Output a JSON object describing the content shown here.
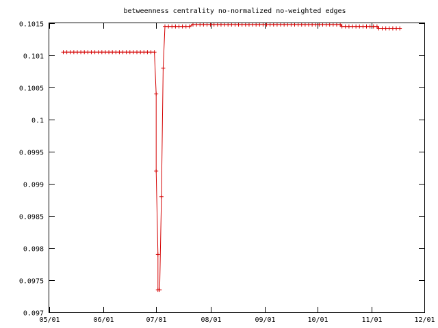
{
  "chart_data": {
    "type": "line",
    "title": "betweenness centrality no-normalized no-weighted edges",
    "xlabel": "",
    "ylabel": "",
    "xlim": [
      "2001-05-01",
      "2001-12-01"
    ],
    "ylim": [
      0.097,
      0.1015
    ],
    "grid": false,
    "legend": "none",
    "x_ticks": [
      "05/01",
      "06/01",
      "07/01",
      "08/01",
      "09/01",
      "10/01",
      "11/01",
      "12/01"
    ],
    "y_ticks": [
      "0.097",
      "0.0975",
      "0.098",
      "0.0985",
      "0.099",
      "0.0995",
      "0.1",
      "0.1005",
      "0.101",
      "0.1015"
    ],
    "series": [
      {
        "color": "#d40000",
        "marker": "plus",
        "points": [
          [
            "2001-05-09",
            0.10105
          ],
          [
            "2001-05-11",
            0.10105
          ],
          [
            "2001-05-13",
            0.10105
          ],
          [
            "2001-05-15",
            0.10105
          ],
          [
            "2001-05-17",
            0.10105
          ],
          [
            "2001-05-19",
            0.10105
          ],
          [
            "2001-05-21",
            0.10105
          ],
          [
            "2001-05-23",
            0.10105
          ],
          [
            "2001-05-25",
            0.10105
          ],
          [
            "2001-05-27",
            0.10105
          ],
          [
            "2001-05-29",
            0.10105
          ],
          [
            "2001-05-31",
            0.10105
          ],
          [
            "2001-06-02",
            0.10105
          ],
          [
            "2001-06-04",
            0.10105
          ],
          [
            "2001-06-06",
            0.10105
          ],
          [
            "2001-06-08",
            0.10105
          ],
          [
            "2001-06-10",
            0.10105
          ],
          [
            "2001-06-12",
            0.10105
          ],
          [
            "2001-06-14",
            0.10105
          ],
          [
            "2001-06-16",
            0.10105
          ],
          [
            "2001-06-18",
            0.10105
          ],
          [
            "2001-06-20",
            0.10105
          ],
          [
            "2001-06-22",
            0.10105
          ],
          [
            "2001-06-24",
            0.10105
          ],
          [
            "2001-06-26",
            0.10105
          ],
          [
            "2001-06-28",
            0.10105
          ],
          [
            "2001-06-30",
            0.10105
          ],
          [
            "2001-07-01",
            0.1004
          ],
          [
            "2001-07-01",
            0.0992
          ],
          [
            "2001-07-02",
            0.0979
          ],
          [
            "2001-07-02",
            0.09735
          ],
          [
            "2001-07-03",
            0.09735
          ],
          [
            "2001-07-04",
            0.0988
          ],
          [
            "2001-07-05",
            0.1008
          ],
          [
            "2001-07-06",
            0.10145
          ],
          [
            "2001-07-08",
            0.10145
          ],
          [
            "2001-07-10",
            0.10145
          ],
          [
            "2001-07-12",
            0.10145
          ],
          [
            "2001-07-14",
            0.10145
          ],
          [
            "2001-07-16",
            0.10145
          ],
          [
            "2001-07-18",
            0.10145
          ],
          [
            "2001-07-20",
            0.10145
          ],
          [
            "2001-07-22",
            0.10148
          ],
          [
            "2001-07-24",
            0.10148
          ],
          [
            "2001-07-26",
            0.10148
          ],
          [
            "2001-07-28",
            0.10148
          ],
          [
            "2001-07-30",
            0.10148
          ],
          [
            "2001-08-01",
            0.10148
          ],
          [
            "2001-08-03",
            0.10148
          ],
          [
            "2001-08-05",
            0.10148
          ],
          [
            "2001-08-07",
            0.10148
          ],
          [
            "2001-08-09",
            0.10148
          ],
          [
            "2001-08-11",
            0.10148
          ],
          [
            "2001-08-13",
            0.10148
          ],
          [
            "2001-08-15",
            0.10148
          ],
          [
            "2001-08-17",
            0.10148
          ],
          [
            "2001-08-19",
            0.10148
          ],
          [
            "2001-08-21",
            0.10148
          ],
          [
            "2001-08-23",
            0.10148
          ],
          [
            "2001-08-25",
            0.10148
          ],
          [
            "2001-08-27",
            0.10148
          ],
          [
            "2001-08-29",
            0.10148
          ],
          [
            "2001-08-31",
            0.10148
          ],
          [
            "2001-09-02",
            0.10148
          ],
          [
            "2001-09-04",
            0.10148
          ],
          [
            "2001-09-06",
            0.10148
          ],
          [
            "2001-09-08",
            0.10148
          ],
          [
            "2001-09-10",
            0.10148
          ],
          [
            "2001-09-12",
            0.10148
          ],
          [
            "2001-09-14",
            0.10148
          ],
          [
            "2001-09-16",
            0.10148
          ],
          [
            "2001-09-18",
            0.10148
          ],
          [
            "2001-09-20",
            0.10148
          ],
          [
            "2001-09-22",
            0.10148
          ],
          [
            "2001-09-24",
            0.10148
          ],
          [
            "2001-09-26",
            0.10148
          ],
          [
            "2001-09-28",
            0.10148
          ],
          [
            "2001-09-30",
            0.10148
          ],
          [
            "2001-10-02",
            0.10148
          ],
          [
            "2001-10-04",
            0.10148
          ],
          [
            "2001-10-06",
            0.10148
          ],
          [
            "2001-10-08",
            0.10148
          ],
          [
            "2001-10-10",
            0.10148
          ],
          [
            "2001-10-12",
            0.10148
          ],
          [
            "2001-10-14",
            0.10148
          ],
          [
            "2001-10-15",
            0.10145
          ],
          [
            "2001-10-17",
            0.10145
          ],
          [
            "2001-10-19",
            0.10145
          ],
          [
            "2001-10-21",
            0.10145
          ],
          [
            "2001-10-23",
            0.10145
          ],
          [
            "2001-10-25",
            0.10145
          ],
          [
            "2001-10-27",
            0.10145
          ],
          [
            "2001-10-29",
            0.10145
          ],
          [
            "2001-10-31",
            0.10145
          ],
          [
            "2001-11-02",
            0.10145
          ],
          [
            "2001-11-04",
            0.10145
          ],
          [
            "2001-11-05",
            0.10142
          ],
          [
            "2001-11-07",
            0.10142
          ],
          [
            "2001-11-09",
            0.10142
          ],
          [
            "2001-11-11",
            0.10142
          ],
          [
            "2001-11-13",
            0.10142
          ],
          [
            "2001-11-15",
            0.10142
          ],
          [
            "2001-11-17",
            0.10142
          ]
        ]
      }
    ]
  }
}
